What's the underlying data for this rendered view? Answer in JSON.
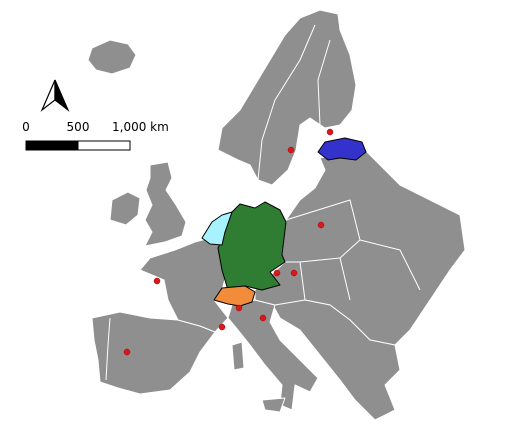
{
  "scale_bar": {
    "labels": [
      "0",
      "500",
      "1,000 km"
    ]
  }
}
